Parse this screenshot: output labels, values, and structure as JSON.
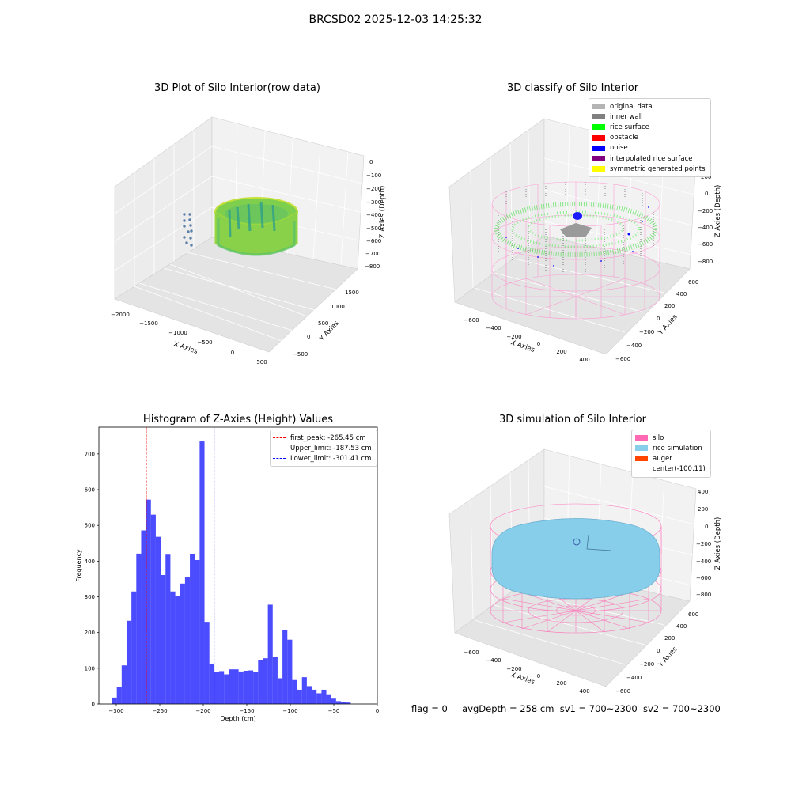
{
  "figure": {
    "suptitle": "BRCSD02 2025-12-03 14:25:32",
    "footer": {
      "flag": "flag = 0",
      "avg_depth": "avgDepth = 258 cm",
      "sv1": "sv1 = 700~2300",
      "sv2": "sv2 = 700~2300"
    }
  },
  "plot_raw": {
    "title": "3D Plot of Silo Interior(row data)",
    "x_label": "X Axies",
    "y_label": "Y Axies",
    "z_label": "Z Axies (Depth)",
    "x_ticks": [
      "−2000",
      "−1500",
      "−1000",
      "−500",
      "0",
      "500"
    ],
    "y_ticks": [
      "−500",
      "0",
      "500",
      "1000",
      "1500"
    ],
    "z_ticks": [
      "0",
      "−100",
      "−200",
      "−300",
      "−400",
      "−500",
      "−600",
      "−700",
      "−800"
    ]
  },
  "plot_classify": {
    "title": "3D classify of Silo Interior",
    "x_label": "X Axies",
    "y_label": "Y Axies",
    "z_label": "Z Axies (Depth)",
    "x_ticks": [
      "−600",
      "−400",
      "−200",
      "0",
      "200",
      "400"
    ],
    "y_ticks": [
      "−600",
      "−400",
      "−200",
      "0",
      "200",
      "400",
      "600"
    ],
    "z_ticks": [
      "200",
      "0",
      "−200",
      "−400",
      "−600",
      "−800"
    ],
    "legend": [
      {
        "label": "original data",
        "color": "#b4b4b4"
      },
      {
        "label": "inner wall",
        "color": "#808080"
      },
      {
        "label": "rice surface",
        "color": "#00ff00"
      },
      {
        "label": "obstacle",
        "color": "#ff0000"
      },
      {
        "label": "noise",
        "color": "#0000ff"
      },
      {
        "label": "interpolated rice surface",
        "color": "#800080"
      },
      {
        "label": "symmetric generated points",
        "color": "#ffff00"
      }
    ]
  },
  "plot_sim": {
    "title": "3D simulation of Silo Interior",
    "x_label": "X Axies",
    "y_label": "Y Axies",
    "z_label": "Z Axies (Depth)",
    "x_ticks": [
      "−600",
      "−400",
      "−200",
      "0",
      "200",
      "400"
    ],
    "y_ticks": [
      "−600",
      "−400",
      "−200",
      "0",
      "200",
      "400",
      "600"
    ],
    "z_ticks": [
      "400",
      "200",
      "0",
      "−200",
      "−400",
      "−600",
      "−800"
    ],
    "legend": [
      {
        "label": "silo",
        "color": "#ff69b4"
      },
      {
        "label": "rice simulation",
        "color": "#87ceeb"
      },
      {
        "label": "auger",
        "color": "#ff4500"
      },
      {
        "label": "center(-100,11)",
        "color": ""
      }
    ]
  },
  "chart_data": [
    {
      "type": "bar",
      "title": "Histogram of Z-Axies (Height) Values",
      "xlabel": "Depth (cm)",
      "ylabel": "Frequency",
      "xlim": [
        -320,
        0
      ],
      "ylim": [
        0,
        775
      ],
      "x_ticks": [
        -300,
        -250,
        -200,
        -150,
        -100,
        -50,
        0
      ],
      "x_tick_labels": [
        "−300",
        "−250",
        "−200",
        "−150",
        "−100",
        "−50",
        "0"
      ],
      "y_ticks": [
        0,
        100,
        200,
        300,
        400,
        500,
        600,
        700
      ],
      "color": "#0000ff",
      "bin_width": 5.6,
      "bin_start": -305,
      "values": [
        18,
        47,
        108,
        233,
        315,
        421,
        486,
        572,
        530,
        468,
        361,
        418,
        315,
        303,
        337,
        356,
        419,
        403,
        735,
        230,
        113,
        90,
        92,
        83,
        97,
        97,
        91,
        93,
        94,
        90,
        122,
        128,
        278,
        132,
        72,
        206,
        180,
        67,
        40,
        75,
        50,
        40,
        30,
        40,
        25,
        15,
        8,
        6,
        4
      ],
      "lines": [
        {
          "name": "first_peak: -265.45 cm",
          "x": -265.45,
          "color": "#ff0000"
        },
        {
          "name": "Upper_limit: -187.53 cm",
          "x": -187.53,
          "color": "#0000ff"
        },
        {
          "name": "Lower_limit: -301.41 cm",
          "x": -301.41,
          "color": "#0000ff"
        }
      ],
      "legend_position": "upper right"
    }
  ]
}
